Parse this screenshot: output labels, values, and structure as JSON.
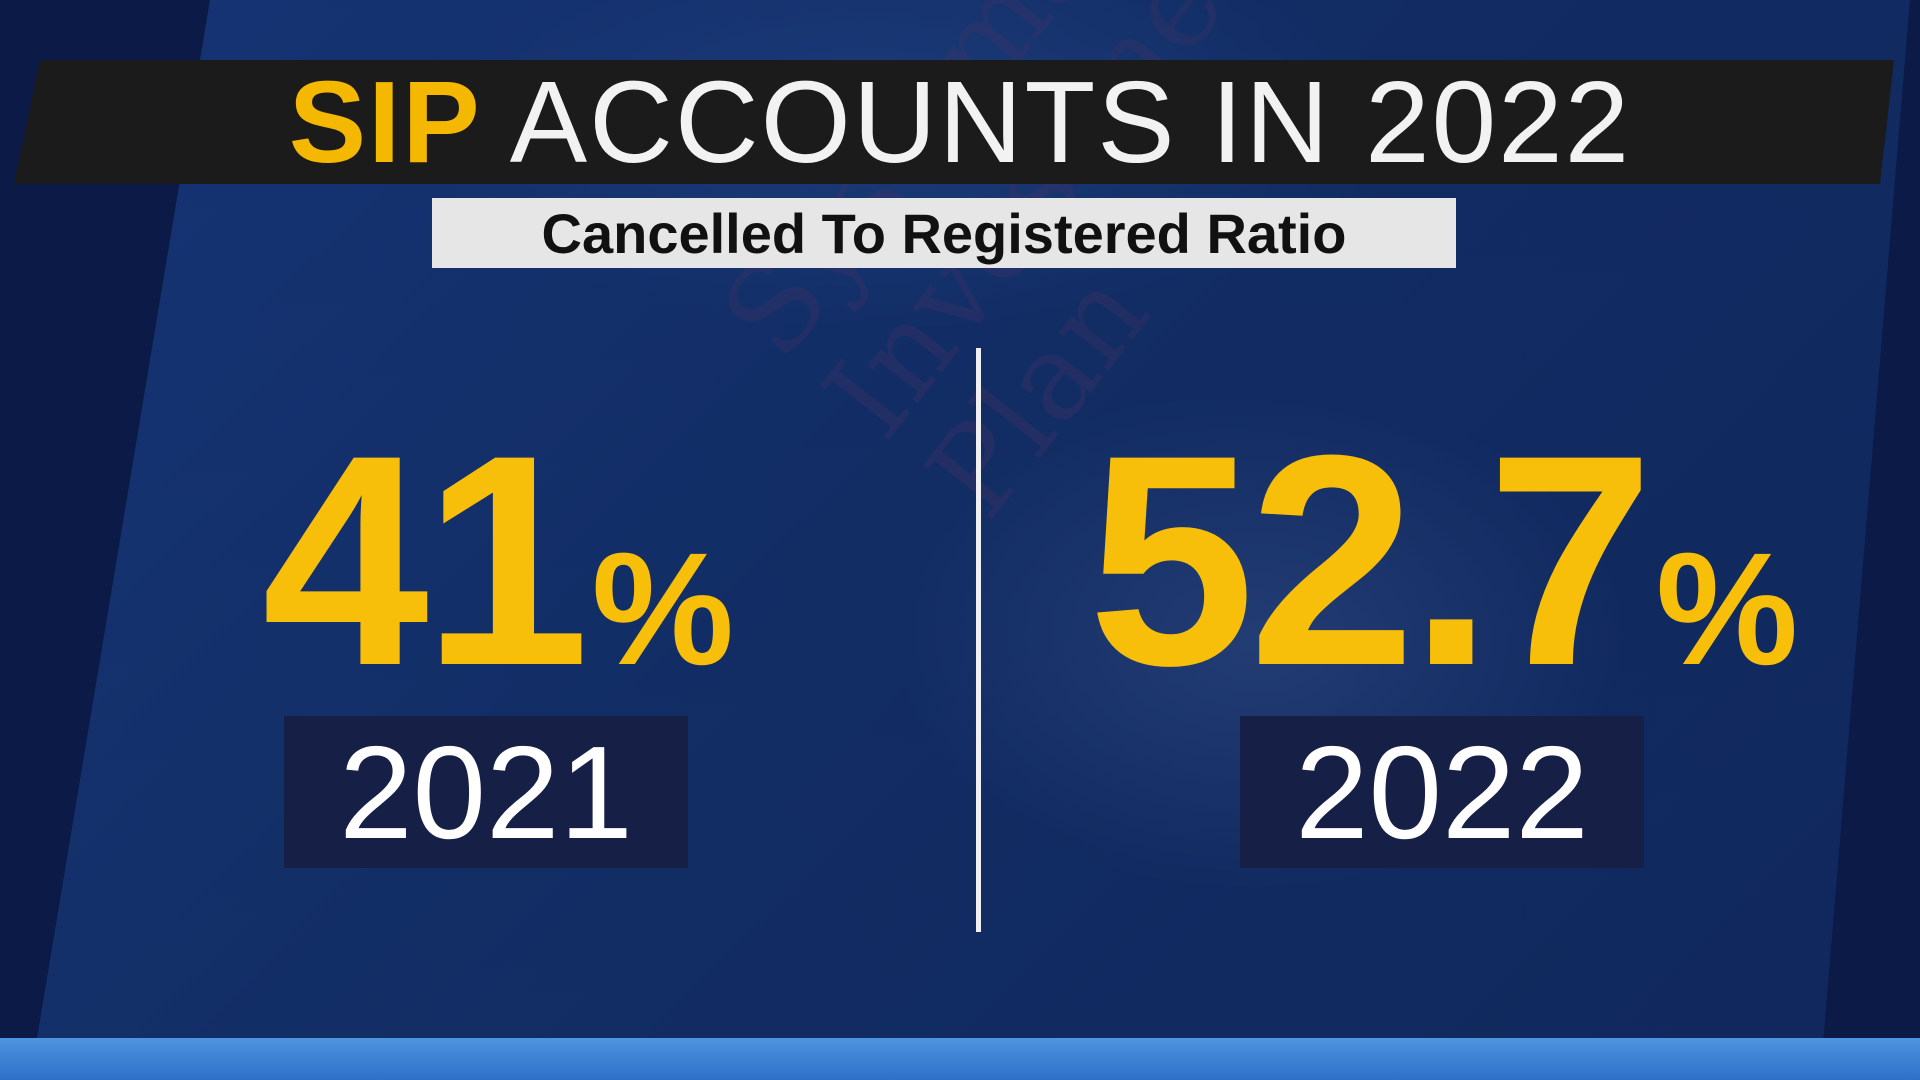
{
  "title": {
    "highlight": "SIP",
    "rest": "ACCOUNTS IN 2022"
  },
  "subtitle": "Cancelled To Registered Ratio",
  "stats": [
    {
      "value": "41",
      "unit": "%",
      "year": "2021"
    },
    {
      "value": "52.7",
      "unit": "%",
      "year": "2022"
    }
  ],
  "colors": {
    "accent": "#f7be0a",
    "background": "#0c1a4a",
    "year_box": "#162046"
  }
}
